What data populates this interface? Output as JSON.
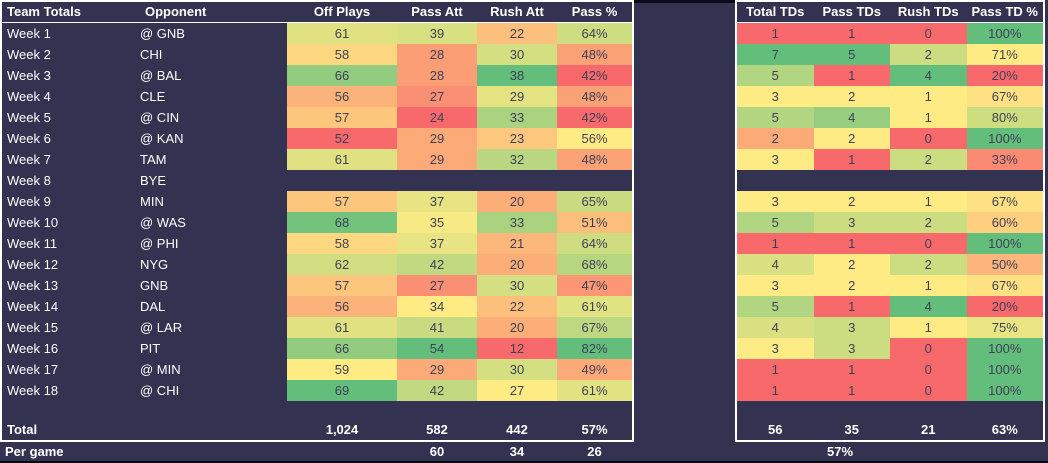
{
  "colors": {
    "background": "#333351",
    "table_border": "#ffffff",
    "header_text": "#ffffff",
    "label_text": "#ffffff",
    "cell_text": "#3f3f58",
    "summary_text": "#ffffff"
  },
  "heatmap": {
    "min_color": "#F8696B",
    "mid_color": "#FFEB84",
    "max_color": "#63BE7B",
    "midpoint": "50th percentile"
  },
  "left_table": {
    "headers": [
      "Team Totals",
      "Opponent",
      "Off Plays",
      "Pass Att",
      "Rush Att",
      "Pass %"
    ],
    "suffixes": [
      "",
      "",
      "",
      "%"
    ],
    "rows": [
      {
        "week": "Week 1",
        "opponent": "@ GNB",
        "values": [
          61,
          39,
          22,
          64
        ]
      },
      {
        "week": "Week 2",
        "opponent": "CHI",
        "values": [
          58,
          28,
          30,
          48
        ]
      },
      {
        "week": "Week 3",
        "opponent": "@ BAL",
        "values": [
          66,
          28,
          38,
          42
        ]
      },
      {
        "week": "Week 4",
        "opponent": "CLE",
        "values": [
          56,
          27,
          29,
          48
        ]
      },
      {
        "week": "Week 5",
        "opponent": "@ CIN",
        "values": [
          57,
          24,
          33,
          42
        ]
      },
      {
        "week": "Week 6",
        "opponent": "@ KAN",
        "values": [
          52,
          29,
          23,
          56
        ]
      },
      {
        "week": "Week 7",
        "opponent": "TAM",
        "values": [
          61,
          29,
          32,
          48
        ]
      },
      {
        "week": "Week 8",
        "opponent": "BYE",
        "values": null
      },
      {
        "week": "Week 9",
        "opponent": "MIN",
        "values": [
          57,
          37,
          20,
          65
        ]
      },
      {
        "week": "Week 10",
        "opponent": "@ WAS",
        "values": [
          68,
          35,
          33,
          51
        ]
      },
      {
        "week": "Week 11",
        "opponent": "@ PHI",
        "values": [
          58,
          37,
          21,
          64
        ]
      },
      {
        "week": "Week 12",
        "opponent": "NYG",
        "values": [
          62,
          42,
          20,
          68
        ]
      },
      {
        "week": "Week 13",
        "opponent": "GNB",
        "values": [
          57,
          27,
          30,
          47
        ]
      },
      {
        "week": "Week 14",
        "opponent": "DAL",
        "values": [
          56,
          34,
          22,
          61
        ]
      },
      {
        "week": "Week 15",
        "opponent": "@ LAR",
        "values": [
          61,
          41,
          20,
          67
        ]
      },
      {
        "week": "Week 16",
        "opponent": "PIT",
        "values": [
          66,
          54,
          12,
          82
        ]
      },
      {
        "week": "Week 17",
        "opponent": "@ MIN",
        "values": [
          59,
          29,
          30,
          49
        ]
      },
      {
        "week": "Week 18",
        "opponent": "@ CHI",
        "values": [
          69,
          42,
          27,
          61
        ]
      }
    ],
    "total": {
      "label": "Total",
      "values": [
        "1,024",
        "582",
        "442",
        "57%"
      ]
    }
  },
  "right_table": {
    "headers": [
      "Total TDs",
      "Pass TDs",
      "Rush TDs",
      "Pass TD %"
    ],
    "suffixes": [
      "",
      "",
      "",
      "%"
    ],
    "rows": [
      {
        "values": [
          1,
          1,
          0,
          100
        ]
      },
      {
        "values": [
          7,
          5,
          2,
          71
        ]
      },
      {
        "values": [
          5,
          1,
          4,
          20
        ]
      },
      {
        "values": [
          3,
          2,
          1,
          67
        ]
      },
      {
        "values": [
          5,
          4,
          1,
          80
        ]
      },
      {
        "values": [
          2,
          2,
          0,
          100
        ]
      },
      {
        "values": [
          3,
          1,
          2,
          33
        ]
      },
      {
        "values": null
      },
      {
        "values": [
          3,
          2,
          1,
          67
        ]
      },
      {
        "values": [
          5,
          3,
          2,
          60
        ]
      },
      {
        "values": [
          1,
          1,
          0,
          100
        ]
      },
      {
        "values": [
          4,
          2,
          2,
          50
        ]
      },
      {
        "values": [
          3,
          2,
          1,
          67
        ]
      },
      {
        "values": [
          5,
          1,
          4,
          20
        ]
      },
      {
        "values": [
          4,
          3,
          1,
          75
        ]
      },
      {
        "values": [
          3,
          3,
          0,
          100
        ]
      },
      {
        "values": [
          1,
          1,
          0,
          100
        ]
      },
      {
        "values": [
          1,
          1,
          0,
          100
        ]
      }
    ],
    "total": {
      "values": [
        "56",
        "35",
        "21",
        "63%"
      ]
    }
  },
  "per_game": {
    "label": "Per game",
    "values": [
      "60",
      "34",
      "26",
      "57%"
    ]
  }
}
